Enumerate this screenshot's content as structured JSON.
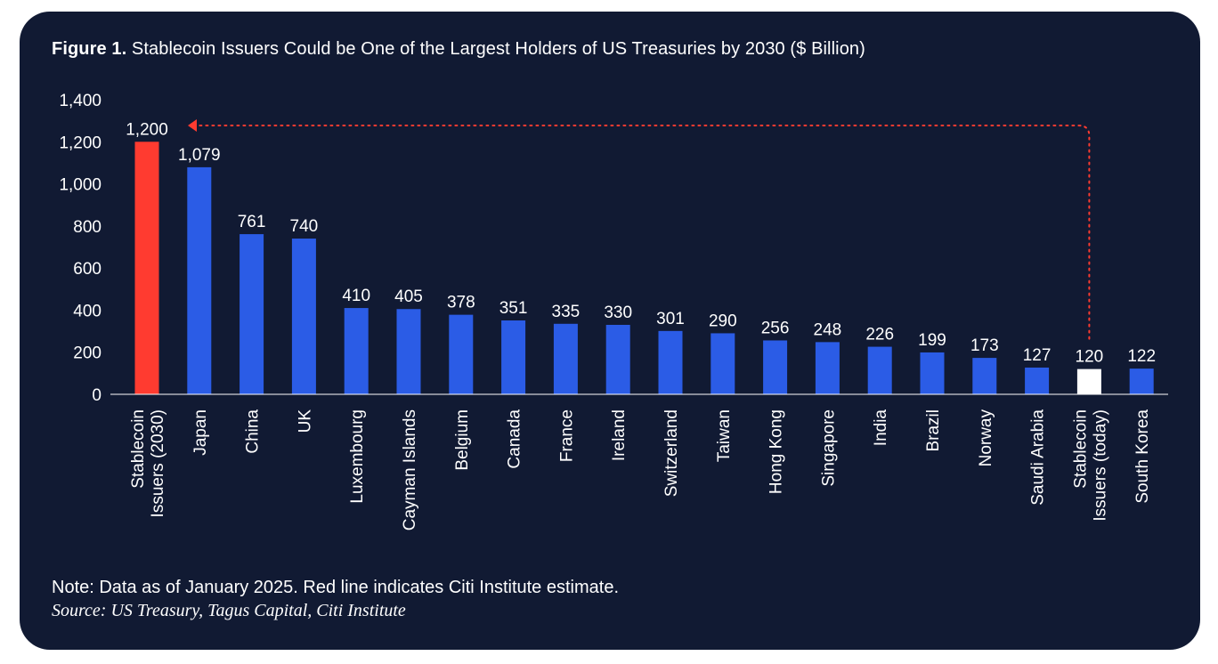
{
  "figure_label": "Figure 1.",
  "title_text": "Stablecoin Issuers Could be One of the Largest Holders of US Treasuries by 2030 ($ Billion)",
  "note": "Note: Data as of January 2025. Red line indicates Citi Institute estimate.",
  "source": "Source: US Treasury, Tagus Capital, Citi Institute",
  "colors": {
    "background": "#111a33",
    "bar_default": "#2b5ce6",
    "bar_highlight": "#ff3b30",
    "bar_today": "#ffffff",
    "arrow": "#ff3b30",
    "text": "#ffffff"
  },
  "chart_data": {
    "type": "bar",
    "title": "Stablecoin Issuers Could be One of the Largest Holders of US Treasuries by 2030 ($ Billion)",
    "xlabel": "",
    "ylabel": "",
    "ylim": [
      0,
      1400
    ],
    "yticks": [
      0,
      200,
      400,
      600,
      800,
      1000,
      1200,
      1400
    ],
    "ytick_labels": [
      "0",
      "200",
      "400",
      "600",
      "800",
      "1,000",
      "1,200",
      "1,400"
    ],
    "grid": false,
    "categories": [
      [
        "Stablecoin",
        "Issuers (2030)"
      ],
      [
        "Japan"
      ],
      [
        "China"
      ],
      [
        "UK"
      ],
      [
        "Luxembourg"
      ],
      [
        "Cayman Islands"
      ],
      [
        "Belgium"
      ],
      [
        "Canada"
      ],
      [
        "France"
      ],
      [
        "Ireland"
      ],
      [
        "Switzerland"
      ],
      [
        "Taiwan"
      ],
      [
        "Hong Kong"
      ],
      [
        "Singapore"
      ],
      [
        "India"
      ],
      [
        "Brazil"
      ],
      [
        "Norway"
      ],
      [
        "Saudi Arabia"
      ],
      [
        "Stablecoin",
        "Issuers (today)"
      ],
      [
        "South Korea"
      ]
    ],
    "values": [
      1200,
      1079,
      761,
      740,
      410,
      405,
      378,
      351,
      335,
      330,
      301,
      290,
      256,
      248,
      226,
      199,
      173,
      127,
      120,
      122
    ],
    "value_labels": [
      "1,200",
      "1,079",
      "761",
      "740",
      "410",
      "405",
      "378",
      "351",
      "335",
      "330",
      "301",
      "290",
      "256",
      "248",
      "226",
      "199",
      "173",
      "127",
      "120",
      "122"
    ],
    "bar_styles": [
      "highlight",
      "default",
      "default",
      "default",
      "default",
      "default",
      "default",
      "default",
      "default",
      "default",
      "default",
      "default",
      "default",
      "default",
      "default",
      "default",
      "default",
      "default",
      "today",
      "default"
    ],
    "annotation": {
      "type": "dotted-arrow",
      "from_category_index": 18,
      "to_category_index": 0,
      "description_ref": "note"
    }
  }
}
